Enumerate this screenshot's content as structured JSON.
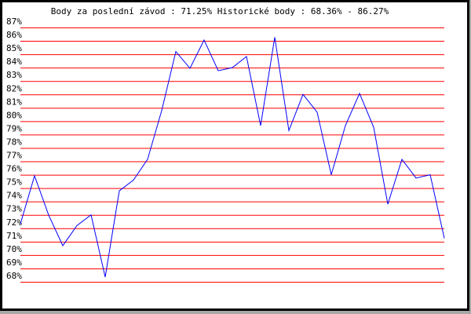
{
  "chart_data": {
    "type": "line",
    "title": "Body za poslední závod : 71.25%  Historické body : 68.36% - 86.27%",
    "xlabel": "",
    "ylabel": "",
    "ylim": [
      68,
      87
    ],
    "y_ticks": [
      "68%",
      "69%",
      "70%",
      "71%",
      "72%",
      "73%",
      "74%",
      "75%",
      "76%",
      "77%",
      "78%",
      "79%",
      "80%",
      "81%",
      "82%",
      "83%",
      "84%",
      "85%",
      "86%",
      "87%"
    ],
    "grid": true,
    "colors": {
      "grid": "#ff0000",
      "line": "#0000ff",
      "frame": "#000000",
      "shadow": "#a8a8a8"
    },
    "series": [
      {
        "values": [
          72.34,
          75.92,
          72.98,
          70.7,
          72.2,
          73.0,
          68.36,
          74.8,
          75.6,
          77.15,
          80.8,
          85.2,
          83.95,
          86.06,
          83.77,
          84.0,
          84.83,
          79.67,
          86.27,
          79.3,
          82.0,
          80.67,
          76.0,
          79.67,
          82.07,
          79.55,
          73.8,
          77.15,
          75.75,
          76.0,
          71.25
        ]
      }
    ]
  }
}
